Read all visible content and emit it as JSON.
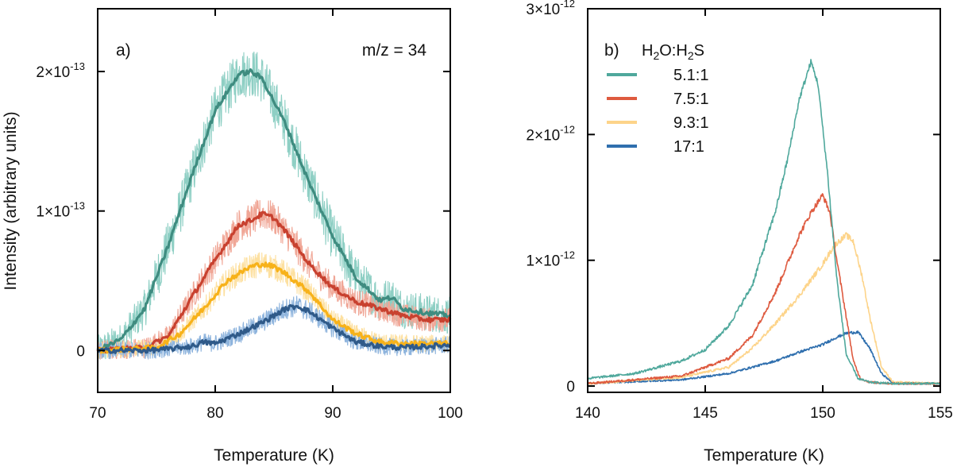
{
  "chart_data": [
    {
      "panel": "a)",
      "type": "line",
      "annotation": "m/z = 34",
      "xlabel": "Temperature (K)",
      "ylabel": "Intensity (arbitrary units)",
      "xlim": [
        70,
        100
      ],
      "ylim": [
        -0.3,
        2.45
      ],
      "y_unit_exponent": -13,
      "xticks": [
        70,
        80,
        90,
        100
      ],
      "yticks": [
        {
          "value": 0,
          "label": "0"
        },
        {
          "value": 1,
          "label": "1×10",
          "exp": "-13"
        },
        {
          "value": 2,
          "label": "2×10",
          "exp": "-13"
        }
      ],
      "series": [
        {
          "name": "5.1:1",
          "raw_color": "#8ecfc4",
          "smooth_color": "#3f8c80",
          "noise": 0.18,
          "x": [
            70,
            72,
            74,
            76,
            78,
            80,
            82,
            83,
            84,
            86,
            88,
            90,
            92,
            94,
            95,
            96,
            98,
            100
          ],
          "values": [
            0,
            0.08,
            0.3,
            0.75,
            1.25,
            1.72,
            1.98,
            2.0,
            1.95,
            1.62,
            1.2,
            0.82,
            0.52,
            0.36,
            0.38,
            0.3,
            0.27,
            0.25
          ]
        },
        {
          "name": "7.5:1",
          "raw_color": "#f0a696",
          "smooth_color": "#c8412f",
          "noise": 0.12,
          "x": [
            70,
            74,
            76,
            78,
            80,
            82,
            83,
            84,
            85,
            86,
            88,
            90,
            92,
            94,
            96,
            98,
            100
          ],
          "values": [
            0,
            0.02,
            0.1,
            0.38,
            0.65,
            0.9,
            0.93,
            0.98,
            0.95,
            0.85,
            0.62,
            0.45,
            0.35,
            0.3,
            0.25,
            0.22,
            0.22
          ]
        },
        {
          "name": "9.3:1",
          "raw_color": "#fde0a0",
          "smooth_color": "#f7b21a",
          "noise": 0.1,
          "x": [
            70,
            75,
            77,
            79,
            81,
            83,
            84,
            85,
            86,
            88,
            90,
            92,
            94,
            96,
            98,
            100
          ],
          "values": [
            0,
            0.02,
            0.12,
            0.3,
            0.5,
            0.6,
            0.62,
            0.6,
            0.55,
            0.42,
            0.22,
            0.12,
            0.06,
            0.05,
            0.05,
            0.05
          ]
        },
        {
          "name": "17:1",
          "raw_color": "#8eb4dd",
          "smooth_color": "#2f5a89",
          "noise": 0.1,
          "x": [
            70,
            74,
            76,
            78,
            79,
            80,
            82,
            84,
            86,
            87,
            88,
            90,
            92,
            94,
            96,
            100
          ],
          "values": [
            0,
            0,
            0.01,
            0.03,
            0.06,
            0.05,
            0.12,
            0.2,
            0.3,
            0.32,
            0.28,
            0.16,
            0.06,
            0.03,
            0.02,
            0.04
          ]
        }
      ]
    },
    {
      "panel": "b)",
      "type": "line",
      "xlabel": "Temperature (K)",
      "xlim": [
        140,
        155
      ],
      "ylim": [
        -0.05,
        3.0
      ],
      "y_unit_exponent": -12,
      "xticks": [
        140,
        145,
        150,
        155
      ],
      "yticks": [
        {
          "value": 0,
          "label": "0"
        },
        {
          "value": 1,
          "label": "1×10",
          "exp": "-12"
        },
        {
          "value": 2,
          "label": "2×10",
          "exp": "-12"
        },
        {
          "value": 3,
          "label": "3×10",
          "exp": "-12"
        }
      ],
      "legend": {
        "title_parts": [
          "H",
          "2",
          "O:H",
          "2",
          "S"
        ],
        "position": "top-left",
        "entries": [
          "5.1:1",
          "7.5:1",
          "9.3:1",
          "17:1"
        ]
      },
      "series": [
        {
          "name": "5.1:1",
          "color": "#4fa89c",
          "noise": 0.015,
          "x": [
            140,
            142,
            144,
            145,
            146,
            147,
            148,
            148.5,
            149,
            149.5,
            149.8,
            150.2,
            150.6,
            151,
            151.5,
            152,
            153,
            155
          ],
          "values": [
            0.06,
            0.1,
            0.2,
            0.29,
            0.48,
            0.8,
            1.4,
            1.8,
            2.28,
            2.58,
            2.4,
            1.7,
            0.85,
            0.25,
            0.06,
            0.03,
            0.02,
            0.02
          ]
        },
        {
          "name": "7.5:1",
          "color": "#de5a3f",
          "noise": 0.015,
          "x": [
            140,
            144,
            146,
            147,
            148,
            149,
            149.5,
            150,
            150.3,
            150.6,
            151,
            151.3,
            151.6,
            152,
            153,
            155
          ],
          "values": [
            0.02,
            0.08,
            0.22,
            0.4,
            0.75,
            1.2,
            1.38,
            1.52,
            1.38,
            1.0,
            0.55,
            0.2,
            0.06,
            0.03,
            0.02,
            0.02
          ]
        },
        {
          "name": "9.3:1",
          "color": "#fdd48a",
          "noise": 0.015,
          "x": [
            140,
            144,
            146,
            147,
            148,
            149,
            150,
            150.5,
            151,
            151.3,
            151.7,
            152,
            152.5,
            153,
            155
          ],
          "values": [
            0.02,
            0.07,
            0.15,
            0.3,
            0.5,
            0.72,
            0.97,
            1.12,
            1.2,
            1.15,
            0.85,
            0.55,
            0.15,
            0.03,
            0.02
          ]
        },
        {
          "name": "17:1",
          "color": "#2f6fae",
          "noise": 0.012,
          "x": [
            140,
            144,
            146,
            148,
            149,
            150,
            150.5,
            151,
            151.5,
            152,
            152.5,
            153,
            155
          ],
          "values": [
            0.02,
            0.05,
            0.1,
            0.2,
            0.27,
            0.33,
            0.38,
            0.42,
            0.43,
            0.3,
            0.1,
            0.02,
            0.02
          ]
        }
      ]
    }
  ]
}
